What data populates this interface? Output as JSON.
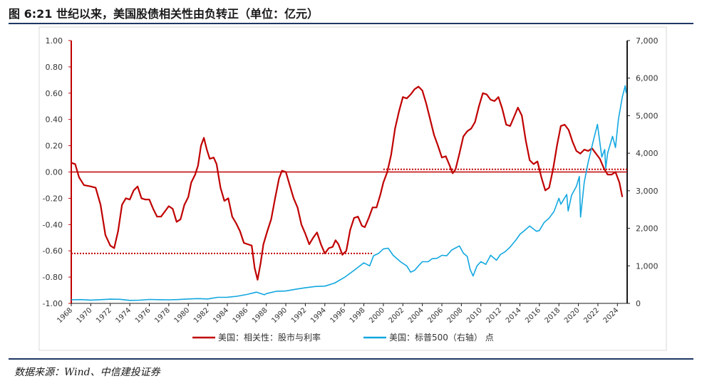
{
  "title": "图 6:21 世纪以来，美国股债相关性由负转正（单位：亿元）",
  "source": "数据来源：Wind、中信建投证券",
  "chart_data": {
    "type": "line",
    "x_ticks": [
      "1968",
      "1970",
      "1972",
      "1974",
      "1976",
      "1978",
      "1980",
      "1982",
      "1984",
      "1986",
      "1988",
      "1990",
      "1992",
      "1994",
      "1996",
      "1998",
      "2000",
      "2002",
      "2004",
      "2006",
      "2008",
      "2010",
      "2012",
      "2014",
      "2016",
      "2018",
      "2020",
      "2022",
      "2024"
    ],
    "xlim": [
      1968,
      2025
    ],
    "y_left": {
      "ticks": [
        "1.00",
        "0.80",
        "0.60",
        "0.40",
        "0.20",
        "0.00",
        "-0.20",
        "-0.40",
        "-0.60",
        "-0.80",
        "-1.00"
      ],
      "lim": [
        -1,
        1
      ]
    },
    "y_right": {
      "ticks": [
        "7,000",
        "6,000",
        "5,000",
        "4,000",
        "3,000",
        "2,000",
        "1,000",
        "0"
      ],
      "lim": [
        0,
        7000
      ]
    },
    "reference_lines": [
      {
        "axis": "left",
        "y": 0,
        "from": 1968,
        "to": 2025,
        "style": "solid",
        "color": "#c00000"
      },
      {
        "axis": "left",
        "y": -0.62,
        "from": 1968,
        "to": 1999,
        "style": "dotted",
        "color": "#c00000"
      },
      {
        "axis": "left",
        "y": 0.02,
        "from": 2000,
        "to": 2025,
        "style": "dotted",
        "color": "#c00000"
      }
    ],
    "series": [
      {
        "name": "美国：相关性：股市与利率",
        "axis": "left",
        "color": "#c00000",
        "points": [
          [
            1968,
            0.07
          ],
          [
            1968.4,
            0.06
          ],
          [
            1968.8,
            -0.04
          ],
          [
            1969.3,
            -0.1
          ],
          [
            1970,
            -0.11
          ],
          [
            1970.5,
            -0.12
          ],
          [
            1971,
            -0.25
          ],
          [
            1971.5,
            -0.48
          ],
          [
            1972,
            -0.56
          ],
          [
            1972.4,
            -0.58
          ],
          [
            1972.8,
            -0.45
          ],
          [
            1973.2,
            -0.25
          ],
          [
            1973.6,
            -0.2
          ],
          [
            1974,
            -0.21
          ],
          [
            1974.4,
            -0.14
          ],
          [
            1974.8,
            -0.11
          ],
          [
            1975.2,
            -0.2
          ],
          [
            1975.6,
            -0.21
          ],
          [
            1976,
            -0.21
          ],
          [
            1976.4,
            -0.28
          ],
          [
            1976.8,
            -0.34
          ],
          [
            1977.2,
            -0.34
          ],
          [
            1977.6,
            -0.3
          ],
          [
            1978,
            -0.26
          ],
          [
            1978.4,
            -0.28
          ],
          [
            1978.8,
            -0.38
          ],
          [
            1979.2,
            -0.36
          ],
          [
            1979.6,
            -0.25
          ],
          [
            1980,
            -0.19
          ],
          [
            1980.3,
            -0.08
          ],
          [
            1980.7,
            -0.02
          ],
          [
            1981,
            0.05
          ],
          [
            1981.3,
            0.2
          ],
          [
            1981.6,
            0.26
          ],
          [
            1981.9,
            0.17
          ],
          [
            1982.2,
            0.1
          ],
          [
            1982.6,
            0.11
          ],
          [
            1982.9,
            0.06
          ],
          [
            1983.3,
            -0.12
          ],
          [
            1983.7,
            -0.22
          ],
          [
            1984.1,
            -0.2
          ],
          [
            1984.5,
            -0.34
          ],
          [
            1984.9,
            -0.39
          ],
          [
            1985.3,
            -0.45
          ],
          [
            1985.7,
            -0.54
          ],
          [
            1986.1,
            -0.55
          ],
          [
            1986.5,
            -0.56
          ],
          [
            1986.8,
            -0.73
          ],
          [
            1987.1,
            -0.82
          ],
          [
            1987.4,
            -0.7
          ],
          [
            1987.7,
            -0.55
          ],
          [
            1988.1,
            -0.45
          ],
          [
            1988.5,
            -0.36
          ],
          [
            1988.9,
            -0.2
          ],
          [
            1989.3,
            -0.05
          ],
          [
            1989.6,
            0.01
          ],
          [
            1990,
            0.0
          ],
          [
            1990.4,
            -0.1
          ],
          [
            1990.8,
            -0.2
          ],
          [
            1991.2,
            -0.27
          ],
          [
            1991.6,
            -0.4
          ],
          [
            1992,
            -0.47
          ],
          [
            1992.4,
            -0.55
          ],
          [
            1992.8,
            -0.5
          ],
          [
            1993.2,
            -0.46
          ],
          [
            1993.6,
            -0.55
          ],
          [
            1994,
            -0.62
          ],
          [
            1994.4,
            -0.58
          ],
          [
            1994.8,
            -0.57
          ],
          [
            1995.1,
            -0.52
          ],
          [
            1995.4,
            -0.55
          ],
          [
            1995.8,
            -0.63
          ],
          [
            1996.2,
            -0.6
          ],
          [
            1996.6,
            -0.44
          ],
          [
            1997,
            -0.35
          ],
          [
            1997.4,
            -0.34
          ],
          [
            1997.8,
            -0.41
          ],
          [
            1998.1,
            -0.42
          ],
          [
            1998.5,
            -0.35
          ],
          [
            1998.9,
            -0.27
          ],
          [
            1999.3,
            -0.27
          ],
          [
            1999.7,
            -0.17
          ],
          [
            2000,
            -0.08
          ],
          [
            2000.4,
            0.0
          ],
          [
            2000.8,
            0.13
          ],
          [
            2001.2,
            0.33
          ],
          [
            2001.6,
            0.46
          ],
          [
            2002,
            0.57
          ],
          [
            2002.4,
            0.56
          ],
          [
            2002.8,
            0.59
          ],
          [
            2003.2,
            0.63
          ],
          [
            2003.6,
            0.65
          ],
          [
            2004,
            0.62
          ],
          [
            2004.4,
            0.52
          ],
          [
            2004.8,
            0.4
          ],
          [
            2005.2,
            0.28
          ],
          [
            2005.6,
            0.2
          ],
          [
            2006,
            0.11
          ],
          [
            2006.4,
            0.12
          ],
          [
            2006.8,
            0.05
          ],
          [
            2007.1,
            -0.01
          ],
          [
            2007.4,
            0.02
          ],
          [
            2007.8,
            0.14
          ],
          [
            2008.2,
            0.27
          ],
          [
            2008.6,
            0.31
          ],
          [
            2009,
            0.33
          ],
          [
            2009.4,
            0.38
          ],
          [
            2009.8,
            0.5
          ],
          [
            2010.2,
            0.6
          ],
          [
            2010.6,
            0.59
          ],
          [
            2011,
            0.55
          ],
          [
            2011.4,
            0.54
          ],
          [
            2011.8,
            0.57
          ],
          [
            2012.2,
            0.48
          ],
          [
            2012.6,
            0.36
          ],
          [
            2013,
            0.35
          ],
          [
            2013.4,
            0.42
          ],
          [
            2013.8,
            0.49
          ],
          [
            2014.2,
            0.43
          ],
          [
            2014.6,
            0.24
          ],
          [
            2015,
            0.09
          ],
          [
            2015.4,
            0.06
          ],
          [
            2015.8,
            0.08
          ],
          [
            2016.2,
            -0.04
          ],
          [
            2016.6,
            -0.14
          ],
          [
            2017,
            -0.12
          ],
          [
            2017.4,
            0.02
          ],
          [
            2017.8,
            0.2
          ],
          [
            2018.2,
            0.35
          ],
          [
            2018.6,
            0.36
          ],
          [
            2019,
            0.32
          ],
          [
            2019.4,
            0.23
          ],
          [
            2019.8,
            0.16
          ],
          [
            2020.2,
            0.14
          ],
          [
            2020.6,
            0.17
          ],
          [
            2021,
            0.16
          ],
          [
            2021.4,
            0.18
          ],
          [
            2021.8,
            0.14
          ],
          [
            2022.2,
            0.1
          ],
          [
            2022.6,
            0.03
          ],
          [
            2023,
            -0.02
          ],
          [
            2023.4,
            -0.02
          ],
          [
            2023.8,
            0.0
          ],
          [
            2024.2,
            -0.08
          ],
          [
            2024.5,
            -0.19
          ]
        ]
      },
      {
        "name": "美国：标普500（右轴） 点",
        "axis": "right",
        "color": "#12a7e0",
        "points": [
          [
            1968,
            96
          ],
          [
            1969,
            100
          ],
          [
            1970,
            88
          ],
          [
            1971,
            98
          ],
          [
            1972,
            112
          ],
          [
            1973,
            108
          ],
          [
            1974,
            80
          ],
          [
            1975,
            86
          ],
          [
            1976,
            104
          ],
          [
            1977,
            98
          ],
          [
            1978,
            95
          ],
          [
            1979,
            103
          ],
          [
            1980,
            118
          ],
          [
            1981,
            128
          ],
          [
            1982,
            118
          ],
          [
            1983,
            162
          ],
          [
            1984,
            164
          ],
          [
            1985,
            190
          ],
          [
            1986,
            238
          ],
          [
            1987,
            300
          ],
          [
            1987.8,
            230
          ],
          [
            1988,
            260
          ],
          [
            1989,
            320
          ],
          [
            1990,
            330
          ],
          [
            1991,
            375
          ],
          [
            1992,
            415
          ],
          [
            1993,
            450
          ],
          [
            1994,
            460
          ],
          [
            1995,
            540
          ],
          [
            1996,
            690
          ],
          [
            1997,
            880
          ],
          [
            1998,
            1080
          ],
          [
            1998.6,
            1000
          ],
          [
            1999,
            1270
          ],
          [
            1999.5,
            1330
          ],
          [
            2000,
            1450
          ],
          [
            2000.5,
            1470
          ],
          [
            2001,
            1280
          ],
          [
            2001.8,
            1100
          ],
          [
            2002.4,
            1000
          ],
          [
            2002.8,
            830
          ],
          [
            2003.2,
            880
          ],
          [
            2003.6,
            1000
          ],
          [
            2004,
            1110
          ],
          [
            2004.6,
            1110
          ],
          [
            2005,
            1190
          ],
          [
            2005.5,
            1200
          ],
          [
            2006,
            1280
          ],
          [
            2006.5,
            1270
          ],
          [
            2007,
            1420
          ],
          [
            2007.8,
            1530
          ],
          [
            2008.2,
            1340
          ],
          [
            2008.6,
            1250
          ],
          [
            2008.9,
            900
          ],
          [
            2009.2,
            730
          ],
          [
            2009.6,
            1000
          ],
          [
            2010,
            1110
          ],
          [
            2010.5,
            1040
          ],
          [
            2011,
            1280
          ],
          [
            2011.6,
            1150
          ],
          [
            2012,
            1300
          ],
          [
            2012.5,
            1380
          ],
          [
            2013,
            1500
          ],
          [
            2013.6,
            1690
          ],
          [
            2014,
            1840
          ],
          [
            2014.6,
            1970
          ],
          [
            2015,
            2060
          ],
          [
            2015.7,
            1920
          ],
          [
            2016,
            1940
          ],
          [
            2016.5,
            2160
          ],
          [
            2017,
            2270
          ],
          [
            2017.5,
            2450
          ],
          [
            2018,
            2800
          ],
          [
            2018.2,
            2640
          ],
          [
            2018.8,
            2900
          ],
          [
            2018.95,
            2460
          ],
          [
            2019.3,
            2880
          ],
          [
            2019.8,
            3120
          ],
          [
            2020.1,
            3380
          ],
          [
            2020.22,
            2300
          ],
          [
            2020.6,
            3230
          ],
          [
            2021,
            3760
          ],
          [
            2021.5,
            4300
          ],
          [
            2021.95,
            4770
          ],
          [
            2022.4,
            3900
          ],
          [
            2022.7,
            4100
          ],
          [
            2022.8,
            3600
          ],
          [
            2023,
            4000
          ],
          [
            2023.5,
            4450
          ],
          [
            2023.8,
            4150
          ],
          [
            2024.1,
            4900
          ],
          [
            2024.5,
            5500
          ],
          [
            2024.8,
            5800
          ],
          [
            2024.9,
            5600
          ]
        ]
      }
    ],
    "legend": [
      {
        "label": "美国：相关性：股市与利率",
        "color": "#c00000"
      },
      {
        "label": "美国：标普500（右轴） 点",
        "color": "#12a7e0"
      }
    ],
    "legend_position": "bottom"
  }
}
